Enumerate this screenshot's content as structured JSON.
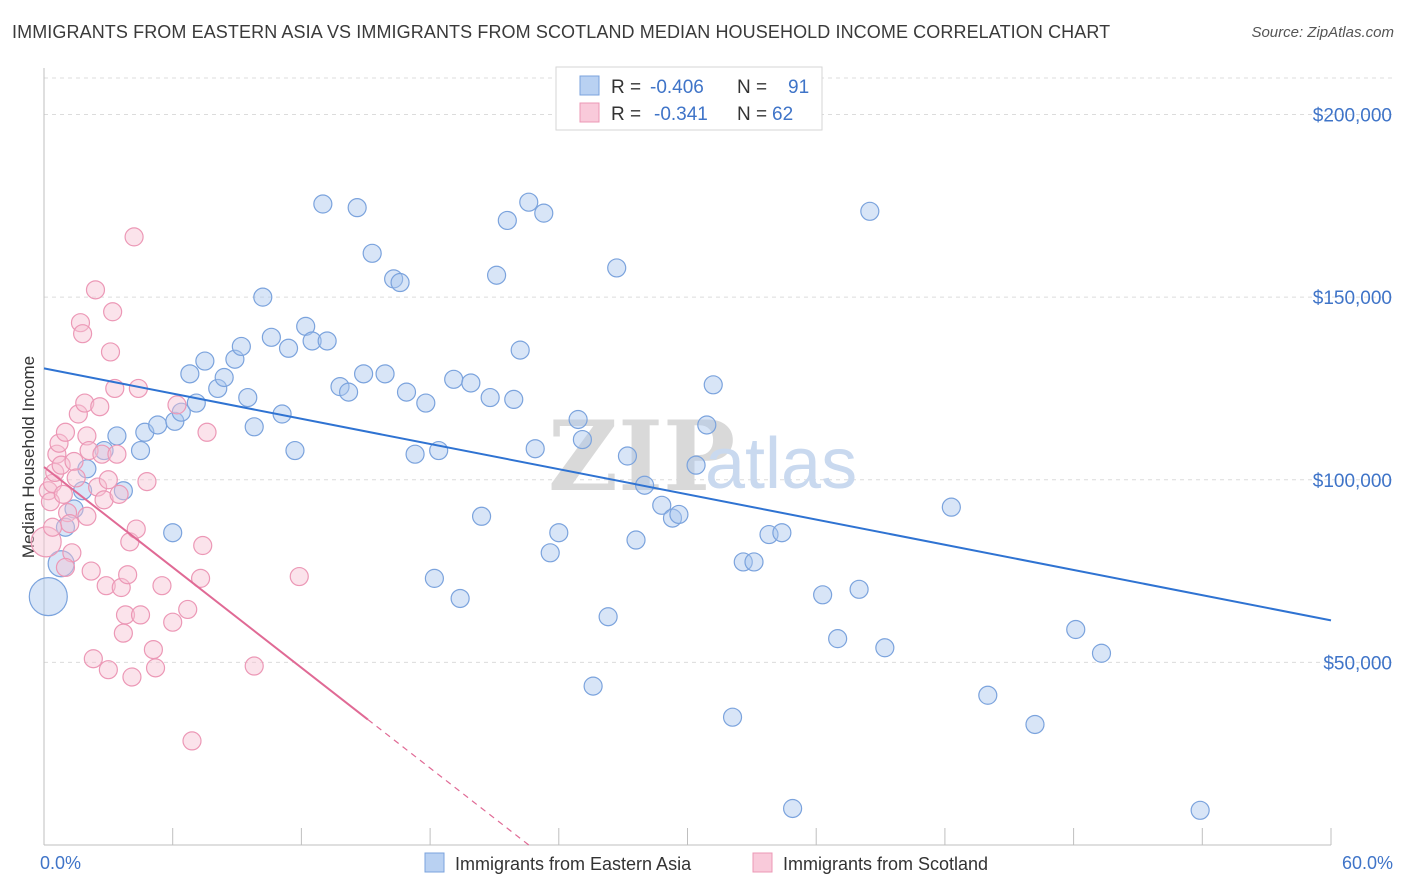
{
  "header": {
    "title": "IMMIGRANTS FROM EASTERN ASIA VS IMMIGRANTS FROM SCOTLAND MEDIAN HOUSEHOLD INCOME CORRELATION CHART",
    "source": "Source: ZipAtlas.com"
  },
  "watermark": {
    "zip": "ZIP",
    "atlas": "atlas"
  },
  "legend": {
    "r_label": "R =",
    "n_label": "N =",
    "rows": [
      {
        "r": "-0.406",
        "n": "91"
      },
      {
        "r": "-0.341",
        "n": "62"
      }
    ]
  },
  "chart_data": {
    "type": "scatter",
    "title": "IMMIGRANTS FROM EASTERN ASIA VS IMMIGRANTS FROM SCOTLAND MEDIAN HOUSEHOLD INCOME CORRELATION CHART",
    "xlabel": "",
    "ylabel": "Median Household Income",
    "xlim": [
      0,
      60
    ],
    "ylim": [
      0,
      210000
    ],
    "x_tick_labels": [
      "0.0%",
      "60.0%"
    ],
    "y_ticks": [
      {
        "value": 50000,
        "label": "$50,000"
      },
      {
        "value": 100000,
        "label": "$100,000"
      },
      {
        "value": 150000,
        "label": "$150,000"
      },
      {
        "value": 200000,
        "label": "$200,000"
      }
    ],
    "grid": "horizontal dashed",
    "series": [
      {
        "name": "Immigrants from Eastern Asia",
        "color": "#a9c6ee",
        "stroke": "#7ba3dd",
        "line_color": "#2f73d2",
        "trend": {
          "x0": 0,
          "y0": 130500,
          "x1": 60,
          "y1": 61500,
          "dashed_from": null
        },
        "points": [
          [
            0.2,
            68000
          ],
          [
            0.8,
            77000
          ],
          [
            1.0,
            87000
          ],
          [
            1.4,
            92000
          ],
          [
            1.8,
            97000
          ],
          [
            2.0,
            103000
          ],
          [
            2.8,
            108000
          ],
          [
            3.4,
            112000
          ],
          [
            4.5,
            108000
          ],
          [
            3.7,
            97000
          ],
          [
            4.7,
            113000
          ],
          [
            5.3,
            115000
          ],
          [
            6.0,
            85500
          ],
          [
            6.1,
            116000
          ],
          [
            6.4,
            118500
          ],
          [
            7.1,
            121000
          ],
          [
            6.8,
            129000
          ],
          [
            7.5,
            132500
          ],
          [
            8.1,
            125000
          ],
          [
            8.4,
            128000
          ],
          [
            8.9,
            133000
          ],
          [
            9.2,
            136500
          ],
          [
            9.5,
            122500
          ],
          [
            9.8,
            114500
          ],
          [
            10.2,
            150000
          ],
          [
            10.6,
            139000
          ],
          [
            11.1,
            118000
          ],
          [
            11.4,
            136000
          ],
          [
            11.7,
            108000
          ],
          [
            12.2,
            142000
          ],
          [
            12.5,
            138000
          ],
          [
            13.2,
            138000
          ],
          [
            13.0,
            175500
          ],
          [
            13.8,
            125500
          ],
          [
            14.2,
            124000
          ],
          [
            14.6,
            174500
          ],
          [
            14.9,
            129000
          ],
          [
            15.3,
            162000
          ],
          [
            15.9,
            129000
          ],
          [
            16.3,
            155000
          ],
          [
            16.6,
            154000
          ],
          [
            16.9,
            124000
          ],
          [
            17.3,
            107000
          ],
          [
            17.8,
            121000
          ],
          [
            18.2,
            73000
          ],
          [
            18.4,
            108000
          ],
          [
            19.1,
            127500
          ],
          [
            19.4,
            67500
          ],
          [
            19.9,
            126500
          ],
          [
            20.4,
            90000
          ],
          [
            20.8,
            122500
          ],
          [
            21.1,
            156000
          ],
          [
            21.6,
            171000
          ],
          [
            21.9,
            122000
          ],
          [
            22.2,
            135500
          ],
          [
            22.6,
            176000
          ],
          [
            22.9,
            108500
          ],
          [
            23.3,
            173000
          ],
          [
            23.6,
            80000
          ],
          [
            24.0,
            85500
          ],
          [
            24.9,
            116500
          ],
          [
            25.1,
            111000
          ],
          [
            25.6,
            43500
          ],
          [
            26.3,
            62500
          ],
          [
            26.7,
            158000
          ],
          [
            27.2,
            106500
          ],
          [
            27.6,
            83500
          ],
          [
            28.0,
            98500
          ],
          [
            28.8,
            93000
          ],
          [
            29.3,
            89500
          ],
          [
            29.6,
            90500
          ],
          [
            30.4,
            104000
          ],
          [
            30.9,
            115000
          ],
          [
            31.2,
            126000
          ],
          [
            32.1,
            35000
          ],
          [
            32.6,
            77500
          ],
          [
            33.1,
            77500
          ],
          [
            33.8,
            85000
          ],
          [
            34.4,
            85500
          ],
          [
            34.9,
            10000
          ],
          [
            36.3,
            68500
          ],
          [
            37.0,
            56500
          ],
          [
            38.0,
            70000
          ],
          [
            38.5,
            173500
          ],
          [
            39.2,
            54000
          ],
          [
            42.3,
            92500
          ],
          [
            48.1,
            59000
          ],
          [
            49.3,
            52500
          ],
          [
            53.9,
            9500
          ],
          [
            44.0,
            41000
          ],
          [
            46.2,
            33000
          ]
        ]
      },
      {
        "name": "Immigrants from Scotland",
        "color": "#f7c0d2",
        "stroke": "#ec98b6",
        "line_color": "#e06a95",
        "trend": {
          "x0": 0,
          "y0": 103500,
          "x1": 22.6,
          "y1": 0,
          "dashed_from": 15.1
        },
        "points": [
          [
            0.1,
            83000
          ],
          [
            0.2,
            97000
          ],
          [
            0.3,
            94000
          ],
          [
            0.4,
            99000
          ],
          [
            0.5,
            102000
          ],
          [
            0.6,
            107000
          ],
          [
            0.7,
            110000
          ],
          [
            0.8,
            104000
          ],
          [
            0.9,
            96000
          ],
          [
            1.0,
            113000
          ],
          [
            1.1,
            91000
          ],
          [
            1.2,
            88000
          ],
          [
            1.3,
            80000
          ],
          [
            1.4,
            105000
          ],
          [
            1.5,
            100500
          ],
          [
            1.6,
            118000
          ],
          [
            1.7,
            143000
          ],
          [
            1.8,
            140000
          ],
          [
            1.9,
            121000
          ],
          [
            2.0,
            112000
          ],
          [
            2.1,
            108000
          ],
          [
            2.2,
            75000
          ],
          [
            2.3,
            51000
          ],
          [
            2.4,
            152000
          ],
          [
            2.5,
            98000
          ],
          [
            2.6,
            120000
          ],
          [
            2.7,
            107000
          ],
          [
            2.8,
            94500
          ],
          [
            2.9,
            71000
          ],
          [
            3.0,
            48000
          ],
          [
            3.1,
            135000
          ],
          [
            3.2,
            146000
          ],
          [
            3.3,
            125000
          ],
          [
            3.4,
            107000
          ],
          [
            3.5,
            96000
          ],
          [
            3.6,
            70500
          ],
          [
            3.7,
            58000
          ],
          [
            3.8,
            63000
          ],
          [
            3.9,
            74000
          ],
          [
            4.0,
            83000
          ],
          [
            4.1,
            46000
          ],
          [
            4.2,
            166500
          ],
          [
            4.3,
            86500
          ],
          [
            4.4,
            125000
          ],
          [
            4.5,
            63000
          ],
          [
            4.8,
            99500
          ],
          [
            5.1,
            53500
          ],
          [
            5.2,
            48500
          ],
          [
            5.5,
            71000
          ],
          [
            6.0,
            61000
          ],
          [
            6.2,
            120500
          ],
          [
            6.7,
            64500
          ],
          [
            6.9,
            28500
          ],
          [
            7.3,
            73000
          ],
          [
            7.4,
            82000
          ],
          [
            7.6,
            113000
          ],
          [
            9.8,
            49000
          ],
          [
            11.9,
            73500
          ],
          [
            0.4,
            87000
          ],
          [
            1.0,
            76000
          ],
          [
            2.0,
            90000
          ],
          [
            3.0,
            100000
          ]
        ]
      }
    ]
  },
  "bottom_legend": [
    {
      "label": "Immigrants from Eastern Asia"
    },
    {
      "label": "Immigrants from Scotland"
    }
  ]
}
